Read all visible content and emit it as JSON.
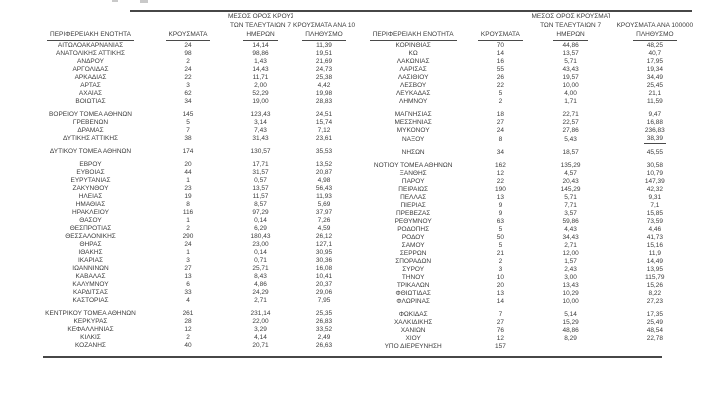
{
  "table_headers": {
    "region": "ΠΕΡΙΦΕΡΕΙΑΚΗ ΕΝΟΤΗΤΑ",
    "cases": "ΚΡΟΥΣΜΑΤΑ",
    "avg7_lines": [
      "ΜΕΣΟΣ ΟΡΟΣ ΚΡΟΥΣΜΑΤΩΝ",
      "ΤΩΝ ΤΕΛΕΥΤΑΙΩΝ 7",
      "ΗΜΕΡΩΝ"
    ],
    "per100k_lines": [
      "ΚΡΟΥΣΜΑΤΑ ΑΝΑ 100000",
      "ΠΛΗΘΥΣΜΟ"
    ]
  },
  "colors": {
    "text": "#3c3c3c",
    "rule": "#474747"
  },
  "left_table": {
    "groups": [
      [
        {
          "region": "ΑΙΤΩΛΟΑΚΑΡΝΑΝΙΑΣ",
          "cases": "24",
          "avg7": "14,14",
          "per100k": "11,39"
        },
        {
          "region": "ΑΝΑΤΟΛΙΚΗΣ ΑΤΤΙΚΗΣ",
          "cases": "98",
          "avg7": "98,86",
          "per100k": "19,51"
        },
        {
          "region": "ΑΝΔΡΟΥ",
          "cases": "2",
          "avg7": "1,43",
          "per100k": "21,69"
        },
        {
          "region": "ΑΡΓΟΛΙΔΑΣ",
          "cases": "24",
          "avg7": "14,43",
          "per100k": "24,73"
        },
        {
          "region": "ΑΡΚΑΔΙΑΣ",
          "cases": "22",
          "avg7": "11,71",
          "per100k": "25,38"
        },
        {
          "region": "ΑΡΤΑΣ",
          "cases": "3",
          "avg7": "2,00",
          "per100k": "4,42"
        },
        {
          "region": "ΑΧΑΪΑΣ",
          "cases": "62",
          "avg7": "52,29",
          "per100k": "19,98"
        },
        {
          "region": "ΒΟΙΩΤΙΑΣ",
          "cases": "34",
          "avg7": "19,00",
          "per100k": "28,83"
        }
      ],
      [
        {
          "region": "ΒΟΡΕΙΟΥ ΤΟΜΕΑ ΑΘΗΝΩΝ",
          "cases": "145",
          "avg7": "123,43",
          "per100k": "24,51"
        },
        {
          "region": "ΓΡΕΒΕΝΩΝ",
          "cases": "5",
          "avg7": "3,14",
          "per100k": "15,74"
        },
        {
          "region": "ΔΡΑΜΑΣ",
          "cases": "7",
          "avg7": "7,43",
          "per100k": "7,12"
        },
        {
          "region": "ΔΥΤΙΚΗΣ ΑΤΤΙΚΗΣ",
          "cases": "38",
          "avg7": "31,43",
          "per100k": "23,61"
        }
      ],
      [
        {
          "region": "ΔΥΤΙΚΟΥ ΤΟΜΕΑ ΑΘΗΝΩΝ",
          "cases": "174",
          "avg7": "130,57",
          "per100k": "35,53"
        }
      ],
      [
        {
          "region": "ΕΒΡΟΥ",
          "cases": "20",
          "avg7": "17,71",
          "per100k": "13,52"
        },
        {
          "region": "ΕΥΒΟΙΑΣ",
          "cases": "44",
          "avg7": "31,57",
          "per100k": "20,87"
        },
        {
          "region": "ΕΥΡΥΤΑΝΙΑΣ",
          "cases": "1",
          "avg7": "0,57",
          "per100k": "4,98"
        },
        {
          "region": "ΖΑΚΥΝΘΟΥ",
          "cases": "23",
          "avg7": "13,57",
          "per100k": "56,43"
        },
        {
          "region": "ΗΛΕΙΑΣ",
          "cases": "19",
          "avg7": "11,57",
          "per100k": "11,93"
        },
        {
          "region": "ΗΜΑΘΙΑΣ",
          "cases": "8",
          "avg7": "8,57",
          "per100k": "5,69"
        },
        {
          "region": "ΗΡΑΚΛΕΙΟΥ",
          "cases": "116",
          "avg7": "97,29",
          "per100k": "37,97"
        },
        {
          "region": "ΘΑΣΟΥ",
          "cases": "1",
          "avg7": "0,14",
          "per100k": "7,26"
        },
        {
          "region": "ΘΕΣΠΡΟΤΙΑΣ",
          "cases": "2",
          "avg7": "6,29",
          "per100k": "4,59"
        },
        {
          "region": "ΘΕΣΣΑΛΟΝΙΚΗΣ",
          "cases": "290",
          "avg7": "180,43",
          "per100k": "26,12"
        },
        {
          "region": "ΘΗΡΑΣ",
          "cases": "24",
          "avg7": "23,00",
          "per100k": "127,1"
        },
        {
          "region": "ΙΘΑΚΗΣ",
          "cases": "1",
          "avg7": "0,14",
          "per100k": "30,95"
        },
        {
          "region": "ΙΚΑΡΙΑΣ",
          "cases": "3",
          "avg7": "0,71",
          "per100k": "30,36"
        },
        {
          "region": "ΙΩΑΝΝΙΝΩΝ",
          "cases": "27",
          "avg7": "25,71",
          "per100k": "16,08"
        },
        {
          "region": "ΚΑΒΑΛΑΣ",
          "cases": "13",
          "avg7": "8,43",
          "per100k": "10,41"
        },
        {
          "region": "ΚΑΛΥΜΝΟΥ",
          "cases": "6",
          "avg7": "4,86",
          "per100k": "20,37"
        },
        {
          "region": "ΚΑΡΔΙΤΣΑΣ",
          "cases": "33",
          "avg7": "24,29",
          "per100k": "29,06"
        },
        {
          "region": "ΚΑΣΤΟΡΙΑΣ",
          "cases": "4",
          "avg7": "2,71",
          "per100k": "7,95"
        }
      ],
      [
        {
          "region": "ΚΕΝΤΡΙΚΟΥ ΤΟΜΕΑ ΑΘΗΝΩΝ",
          "cases": "261",
          "avg7": "231,14",
          "per100k": "25,35"
        },
        {
          "region": "ΚΕΡΚΥΡΑΣ",
          "cases": "28",
          "avg7": "22,00",
          "per100k": "26,83"
        },
        {
          "region": "ΚΕΦΑΛΛΗΝΙΑΣ",
          "cases": "12",
          "avg7": "3,29",
          "per100k": "33,52"
        },
        {
          "region": "ΚΙΛΚΙΣ",
          "cases": "2",
          "avg7": "4,14",
          "per100k": "2,49"
        },
        {
          "region": "ΚΟΖΑΝΗΣ",
          "cases": "40",
          "avg7": "20,71",
          "per100k": "26,63"
        }
      ]
    ]
  },
  "right_table": {
    "groups": [
      [
        {
          "region": "ΚΟΡΙΝΘΙΑΣ",
          "cases": "70",
          "avg7": "44,86",
          "per100k": "48,25"
        },
        {
          "region": "ΚΩ",
          "cases": "14",
          "avg7": "13,57",
          "per100k": "40,7"
        },
        {
          "region": "ΛΑΚΩΝΙΑΣ",
          "cases": "16",
          "avg7": "5,71",
          "per100k": "17,95"
        },
        {
          "region": "ΛΑΡΙΣΑΣ",
          "cases": "55",
          "avg7": "43,43",
          "per100k": "19,34"
        },
        {
          "region": "ΛΑΣΙΘΙΟΥ",
          "cases": "26",
          "avg7": "19,57",
          "per100k": "34,49"
        },
        {
          "region": "ΛΕΣΒΟΥ",
          "cases": "22",
          "avg7": "10,00",
          "per100k": "25,45"
        },
        {
          "region": "ΛΕΥΚΑΔΑΣ",
          "cases": "5",
          "avg7": "4,00",
          "per100k": "21,1"
        },
        {
          "region": "ΛΗΜΝΟΥ",
          "cases": "2",
          "avg7": "1,71",
          "per100k": "11,59"
        }
      ],
      [
        {
          "region": "ΜΑΓΝΗΣΙΑΣ",
          "cases": "18",
          "avg7": "22,71",
          "per100k": "9,47"
        },
        {
          "region": "ΜΕΣΣΗΝΙΑΣ",
          "cases": "27",
          "avg7": "22,57",
          "per100k": "16,88"
        },
        {
          "region": "ΜΥΚΟΝΟΥ",
          "cases": "24",
          "avg7": "27,86",
          "per100k": "236,83"
        },
        {
          "region": "ΝΑΞΟΥ",
          "cases": "8",
          "avg7": "5,43",
          "per100k": "38,39",
          "per100k_underlined": true
        }
      ],
      [
        {
          "region": "ΝΗΣΩΝ",
          "cases": "34",
          "avg7": "18,57",
          "per100k": "45,55"
        }
      ],
      [
        {
          "region": "ΝΟΤΙΟΥ ΤΟΜΕΑ ΑΘΗΝΩΝ",
          "cases": "162",
          "avg7": "135,29",
          "per100k": "30,58"
        },
        {
          "region": "ΞΑΝΘΗΣ",
          "cases": "12",
          "avg7": "4,57",
          "per100k": "10,79"
        },
        {
          "region": "ΠΑΡΟΥ",
          "cases": "22",
          "avg7": "20,43",
          "per100k": "147,39"
        },
        {
          "region": "ΠΕΙΡΑΙΩΣ",
          "cases": "190",
          "avg7": "145,29",
          "per100k": "42,32"
        },
        {
          "region": "ΠΕΛΛΑΣ",
          "cases": "13",
          "avg7": "5,71",
          "per100k": "9,31"
        },
        {
          "region": "ΠΙΕΡΙΑΣ",
          "cases": "9",
          "avg7": "7,71",
          "per100k": "7,1"
        },
        {
          "region": "ΠΡΕΒΕΖΑΣ",
          "cases": "9",
          "avg7": "3,57",
          "per100k": "15,85"
        },
        {
          "region": "ΡΕΘΥΜΝΟΥ",
          "cases": "63",
          "avg7": "59,86",
          "per100k": "73,59"
        },
        {
          "region": "ΡΟΔΟΠΗΣ",
          "cases": "5",
          "avg7": "4,43",
          "per100k": "4,46"
        },
        {
          "region": "ΡΟΔΟΥ",
          "cases": "50",
          "avg7": "34,43",
          "per100k": "41,73"
        },
        {
          "region": "ΣΑΜΟΥ",
          "cases": "5",
          "avg7": "2,71",
          "per100k": "15,16"
        },
        {
          "region": "ΣΕΡΡΩΝ",
          "cases": "21",
          "avg7": "12,00",
          "per100k": "11,9"
        },
        {
          "region": "ΣΠΟΡΑΔΩΝ",
          "cases": "2",
          "avg7": "1,57",
          "per100k": "14,49"
        },
        {
          "region": "ΣΥΡΟΥ",
          "cases": "3",
          "avg7": "2,43",
          "per100k": "13,95"
        },
        {
          "region": "ΤΗΝΟΥ",
          "cases": "10",
          "avg7": "3,00",
          "per100k": "115,79"
        },
        {
          "region": "ΤΡΙΚΑΛΩΝ",
          "cases": "20",
          "avg7": "13,43",
          "per100k": "15,26"
        },
        {
          "region": "ΦΘΙΩΤΙΔΑΣ",
          "cases": "13",
          "avg7": "10,29",
          "per100k": "8,22"
        },
        {
          "region": "ΦΛΩΡΙΝΑΣ",
          "cases": "14",
          "avg7": "10,00",
          "per100k": "27,23"
        }
      ],
      [
        {
          "region": "ΦΩΚΙΔΑΣ",
          "cases": "7",
          "avg7": "5,14",
          "per100k": "17,35"
        },
        {
          "region": "ΧΑΛΚΙΔΙΚΗΣ",
          "cases": "27",
          "avg7": "15,29",
          "per100k": "25,49"
        },
        {
          "region": "ΧΑΝΙΩΝ",
          "cases": "76",
          "avg7": "48,86",
          "per100k": "48,54"
        },
        {
          "region": "ΧΙΟΥ",
          "cases": "12",
          "avg7": "8,29",
          "per100k": "22,78"
        },
        {
          "region": "ΥΠΟ ΔΙΕΡΕΥΝΗΣΗ",
          "cases": "157",
          "avg7": "",
          "per100k": ""
        }
      ]
    ]
  }
}
